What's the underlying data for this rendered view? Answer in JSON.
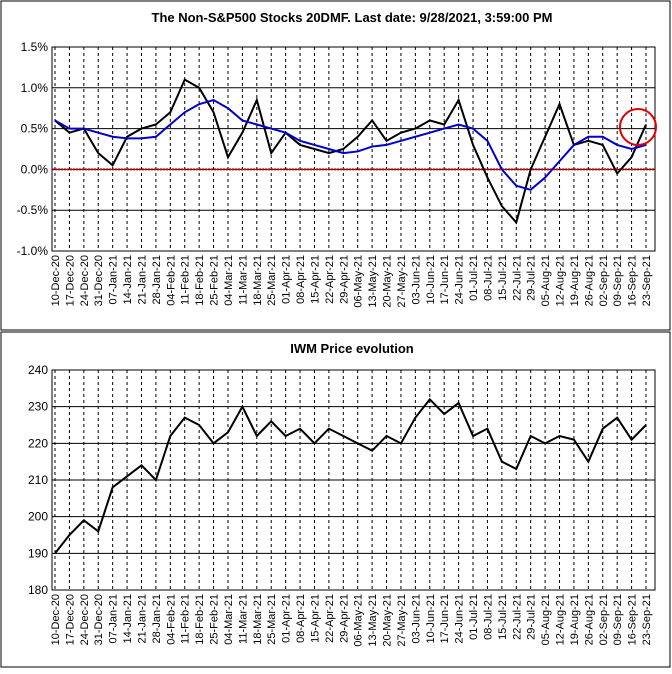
{
  "chart_data": [
    {
      "type": "line",
      "title": "The Non-S&P500 Stocks 20DMF. Last date: 9/28/2021, 3:59:00 PM",
      "categories": [
        "10-Dec-20",
        "17-Dec-20",
        "24-Dec-20",
        "31-Dec-20",
        "07-Jan-21",
        "14-Jan-21",
        "21-Jan-21",
        "28-Jan-21",
        "04-Feb-21",
        "11-Feb-21",
        "18-Feb-21",
        "25-Feb-21",
        "04-Mar-21",
        "11-Mar-21",
        "18-Mar-21",
        "25-Mar-21",
        "01-Apr-21",
        "08-Apr-21",
        "15-Apr-21",
        "22-Apr-21",
        "29-Apr-21",
        "06-May-21",
        "13-May-21",
        "20-May-21",
        "27-May-21",
        "03-Jun-21",
        "10-Jun-21",
        "17-Jun-21",
        "24-Jun-21",
        "01-Jul-21",
        "08-Jul-21",
        "15-Jul-21",
        "22-Jul-21",
        "29-Jul-21",
        "05-Aug-21",
        "12-Aug-21",
        "19-Aug-21",
        "26-Aug-21",
        "02-Sep-21",
        "09-Sep-21",
        "16-Sep-21",
        "23-Sep-21"
      ],
      "series": [
        {
          "color": "#000000",
          "values": [
            0.6,
            0.45,
            0.5,
            0.2,
            0.05,
            0.4,
            0.5,
            0.55,
            0.7,
            1.1,
            1.0,
            0.7,
            0.15,
            0.45,
            0.85,
            0.2,
            0.45,
            0.3,
            0.25,
            0.2,
            0.25,
            0.4,
            0.6,
            0.35,
            0.45,
            0.5,
            0.6,
            0.55,
            0.85,
            0.3,
            -0.1,
            -0.45,
            -0.65,
            0.0,
            0.4,
            0.8,
            0.3,
            0.35,
            0.3,
            -0.05,
            0.15,
            0.55
          ]
        },
        {
          "color": "#0000cc",
          "values": [
            0.6,
            0.5,
            0.5,
            0.45,
            0.4,
            0.38,
            0.38,
            0.4,
            0.55,
            0.7,
            0.8,
            0.85,
            0.75,
            0.6,
            0.55,
            0.5,
            0.45,
            0.35,
            0.3,
            0.25,
            0.2,
            0.22,
            0.28,
            0.3,
            0.35,
            0.4,
            0.45,
            0.5,
            0.55,
            0.5,
            0.35,
            0.0,
            -0.2,
            -0.25,
            -0.1,
            0.1,
            0.3,
            0.4,
            0.4,
            0.3,
            0.25,
            0.3
          ]
        }
      ],
      "ylim": [
        -1.0,
        1.5
      ],
      "yticks": [
        {
          "value": -1.0,
          "label": "-1.0%"
        },
        {
          "value": -0.5,
          "label": "-0.5%"
        },
        {
          "value": 0,
          "label": "0.0%"
        },
        {
          "value": 0.5,
          "label": "0.5%"
        },
        {
          "value": 1.0,
          "label": "1.0%"
        },
        {
          "value": 1.5,
          "label": "1.5%"
        }
      ],
      "grid": true,
      "zero_line_color": "#cc0000"
    },
    {
      "type": "line",
      "title": "IWM Price evolution",
      "categories": [
        "10-Dec-20",
        "17-Dec-20",
        "24-Dec-20",
        "31-Dec-20",
        "07-Jan-21",
        "14-Jan-21",
        "21-Jan-21",
        "28-Jan-21",
        "04-Feb-21",
        "11-Feb-21",
        "18-Feb-21",
        "25-Feb-21",
        "04-Mar-21",
        "11-Mar-21",
        "18-Mar-21",
        "25-Mar-21",
        "01-Apr-21",
        "08-Apr-21",
        "15-Apr-21",
        "22-Apr-21",
        "29-Apr-21",
        "06-May-21",
        "13-May-21",
        "20-May-21",
        "27-May-21",
        "03-Jun-21",
        "10-Jun-21",
        "17-Jun-21",
        "24-Jun-21",
        "01-Jul-21",
        "08-Jul-21",
        "15-Jul-21",
        "22-Jul-21",
        "29-Jul-21",
        "05-Aug-21",
        "12-Aug-21",
        "19-Aug-21",
        "26-Aug-21",
        "02-Sep-21",
        "09-Sep-21",
        "16-Sep-21",
        "23-Sep-21"
      ],
      "series": [
        {
          "color": "#000000",
          "values": [
            190,
            195,
            199,
            196,
            208,
            211,
            214,
            210,
            222,
            227,
            225,
            220,
            223,
            230,
            222,
            226,
            222,
            224,
            220,
            224,
            222,
            220,
            218,
            222,
            220,
            227,
            232,
            228,
            231,
            222,
            224,
            215,
            213,
            222,
            220,
            222,
            221,
            215,
            224,
            227,
            221,
            225
          ]
        }
      ],
      "ylim": [
        180,
        240
      ],
      "yticks": [
        180,
        190,
        200,
        210,
        220,
        230,
        240
      ],
      "grid": true
    }
  ]
}
